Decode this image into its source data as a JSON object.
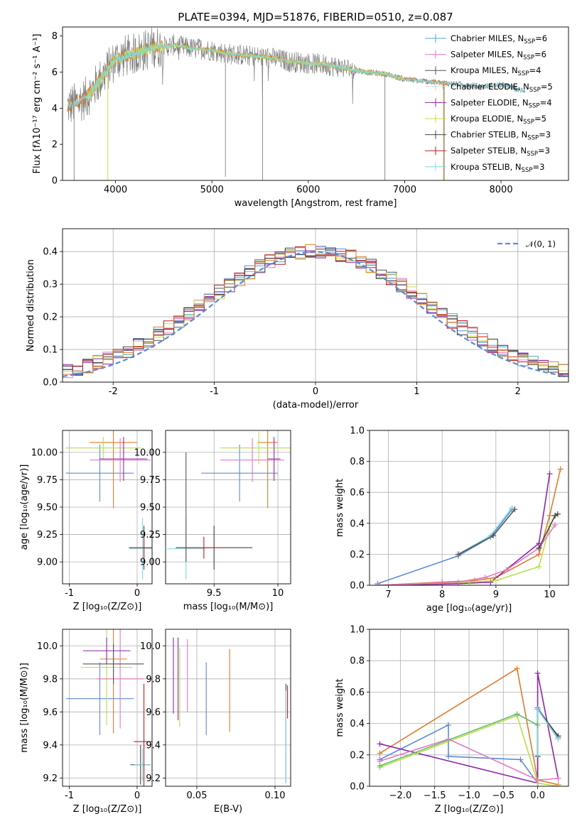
{
  "colors": {
    "chabrier_miles": "#4da6c8",
    "salpeter_miles": "#e377c2",
    "kroupa_miles": "#555555",
    "chabrier_elodie": "#d9d9d9",
    "salpeter_elodie": "#8e24aa",
    "kroupa_elodie": "#c8d84a",
    "chabrier_stelib": "#444444",
    "salpeter_stelib": "#b22222",
    "kroupa_stelib": "#7fd8e0",
    "sum_a": "#5b8bd6",
    "sum_b": "#e07b2a",
    "sum_c": "#b7e04a",
    "gauss": "#5b8bd6",
    "spec_gray": "#808080"
  },
  "chart_data": [
    {
      "id": "spectrum",
      "type": "line",
      "title": "PLATE=0394, MJD=51876, FIBERID=0510, z=0.087",
      "xlabel": "wavelength [Angstrom, rest frame]",
      "ylabel": "Flux [fλ10⁻¹⁷ erg cm⁻² s⁻¹ A⁻¹]",
      "xlim": [
        3450,
        8700
      ],
      "ylim": [
        0,
        8.5
      ],
      "xticks": [
        4000,
        5000,
        6000,
        7000,
        8000
      ],
      "yticks": [
        0,
        2,
        4,
        6,
        8
      ],
      "grid": false,
      "legend_placement": "right",
      "continuum": {
        "x": [
          3500,
          3600,
          3700,
          3800,
          3900,
          4000,
          4100,
          4200,
          4300,
          4400,
          4500,
          4600,
          4700,
          4800,
          4900,
          5000,
          5200,
          5400,
          5600,
          5800,
          6000,
          6200,
          6400,
          6600,
          6800,
          7000,
          7200,
          7400,
          7600,
          7800,
          8000,
          8200
        ],
        "y": [
          4.1,
          4.3,
          4.6,
          5.3,
          6.0,
          6.7,
          6.9,
          7.0,
          7.2,
          7.4,
          7.4,
          7.5,
          7.4,
          7.3,
          7.3,
          7.2,
          7.0,
          6.9,
          6.8,
          6.6,
          6.5,
          6.4,
          6.2,
          6.0,
          5.9,
          5.6,
          5.5,
          5.4,
          5.3,
          5.2,
          5.3,
          5.0
        ]
      },
      "legend": [
        {
          "label": "Chabrier MILES, N",
          "sub": "SSP",
          "value": "=6"
        },
        {
          "label": "Salpeter MILES, N",
          "sub": "SSP",
          "value": "=6"
        },
        {
          "label": "Kroupa MILES, N",
          "sub": "SSP",
          "value": "=4"
        },
        {
          "label": "Chabrier ELODIE, N",
          "sub": "SSP",
          "value": "=5"
        },
        {
          "label": "Salpeter ELODIE, N",
          "sub": "SSP",
          "value": "=4"
        },
        {
          "label": "Kroupa ELODIE, N",
          "sub": "SSP",
          "value": "=5"
        },
        {
          "label": "Chabrier STELIB, N",
          "sub": "SSP",
          "value": "=3"
        },
        {
          "label": "Salpeter STELIB, N",
          "sub": "SSP",
          "value": "=3"
        },
        {
          "label": "Kroupa STELIB, N",
          "sub": "SSP",
          "value": "=3"
        }
      ]
    },
    {
      "id": "residuals",
      "type": "line",
      "xlabel": "(data-model)/error",
      "ylabel": "Normed distribution",
      "xlim": [
        -2.5,
        2.5
      ],
      "ylim": [
        0,
        0.47
      ],
      "xticks": [
        -2,
        -1,
        0,
        1,
        2
      ],
      "yticks": [
        0.0,
        0.1,
        0.2,
        0.3,
        0.4
      ],
      "grid": true,
      "legend_placement": "top-right",
      "legend_label": "𝒩(0, 1)",
      "bin_width": 0.1
    },
    {
      "id": "age_vs_Z",
      "type": "scatter",
      "xlabel": "Z [log₁₀(Z/Z⊙)]",
      "ylabel": "age  [log₁₀(age/yr)]",
      "xlim": [
        -1.1,
        0.22
      ],
      "ylim": [
        8.8,
        10.2
      ],
      "xticks": [
        -1,
        0
      ],
      "yticks": [
        9.0,
        9.25,
        9.5,
        9.75,
        10.0
      ],
      "ytick_labels": [
        "9.00",
        "9.25",
        "9.50",
        "9.75",
        "10.00"
      ],
      "grid": true,
      "crosses": [
        {
          "c": "#5b8bd6",
          "x": -0.55,
          "xerr": 0.5,
          "y": 9.81,
          "yerr": 0.26
        },
        {
          "c": "#e07b2a",
          "x": -0.35,
          "xerr": 0.35,
          "y": 10.09,
          "yerr": 0.6
        },
        {
          "c": "#b7e04a",
          "x": -0.5,
          "xerr": 0.55,
          "y": 10.04,
          "yerr": 0.1
        },
        {
          "c": "#e377c2",
          "x": -0.25,
          "xerr": 0.45,
          "y": 9.93,
          "yerr": 0.2
        },
        {
          "c": "#8e24aa",
          "x": -0.2,
          "xerr": 0.35,
          "y": 9.94,
          "yerr": 0.2
        },
        {
          "c": "#444444",
          "x": 0.1,
          "xerr": 0.22,
          "y": 9.13,
          "yerr": 0.2
        },
        {
          "c": "#7fd8e0",
          "x": 0.08,
          "xerr": 0.2,
          "y": 9.12,
          "yerr": 0.28
        },
        {
          "c": "#b22222",
          "x": 0.1,
          "xerr": 0.2,
          "y": 9.13,
          "yerr": 0.1
        }
      ]
    },
    {
      "id": "age_vs_mass",
      "type": "scatter",
      "xlabel": "mass [log₁₀(M/M⊙)]",
      "ylabel": "",
      "xlim": [
        9.12,
        10.1
      ],
      "ylim": [
        8.8,
        10.2
      ],
      "xticks": [
        9.5,
        10.0
      ],
      "yticks": [
        9.0,
        9.25,
        9.5,
        9.75,
        10.0
      ],
      "ytick_labels": [
        "9.00",
        "9.25",
        "9.50",
        "9.75",
        "10.00"
      ],
      "grid": true,
      "crosses": [
        {
          "c": "#5b8bd6",
          "x": 9.7,
          "xerr": 0.3,
          "y": 9.81,
          "yerr": 0.26
        },
        {
          "c": "#e07b2a",
          "x": 9.92,
          "xerr": 0.08,
          "y": 10.09,
          "yerr": 0.6
        },
        {
          "c": "#b7e04a",
          "x": 9.85,
          "xerr": 0.3,
          "y": 10.04,
          "yerr": 0.15
        },
        {
          "c": "#e377c2",
          "x": 9.8,
          "xerr": 0.25,
          "y": 9.93,
          "yerr": 0.2
        },
        {
          "c": "#8e24aa",
          "x": 9.97,
          "xerr": 0.05,
          "y": 9.94,
          "yerr": 0.2
        },
        {
          "c": "#444444",
          "x": 9.5,
          "xerr": 0.3,
          "y": 9.13,
          "yerr": 0.2
        },
        {
          "c": "#7fd8e0",
          "x": 9.28,
          "xerr": 0.15,
          "y": 9.12,
          "yerr": 0.28
        },
        {
          "c": "#b22222",
          "x": 9.42,
          "xerr": 0.15,
          "y": 9.13,
          "yerr": 0.1
        },
        {
          "c": "#555555",
          "x": 9.28,
          "xerr": 0.0,
          "y": 9.5,
          "yerr": 0.5
        }
      ]
    },
    {
      "id": "massweight_vs_age",
      "type": "line",
      "xlabel": "age  [log₁₀(age/yr)]",
      "ylabel": "mass weight",
      "xlim": [
        6.65,
        10.35
      ],
      "ylim": [
        0,
        1.0
      ],
      "xticks": [
        7,
        8,
        9,
        10
      ],
      "yticks": [
        0.0,
        0.2,
        0.4,
        0.6,
        0.8,
        1.0
      ],
      "grid": true,
      "series": [
        {
          "c": "#5b8bd6",
          "x": [
            6.8,
            8.3,
            8.9,
            9.3
          ],
          "y": [
            0.01,
            0.19,
            0.31,
            0.49
          ]
        },
        {
          "c": "#7fd8e0",
          "x": [
            8.3,
            8.9,
            9.3
          ],
          "y": [
            0.2,
            0.32,
            0.5
          ]
        },
        {
          "c": "#555555",
          "x": [
            8.3,
            8.95,
            9.35
          ],
          "y": [
            0.2,
            0.32,
            0.49
          ]
        },
        {
          "c": "#e07b2a",
          "x": [
            6.8,
            8.0,
            8.6,
            9.0,
            9.8,
            10.0,
            10.2
          ],
          "y": [
            0.0,
            0.02,
            0.03,
            0.05,
            0.2,
            0.45,
            0.75
          ]
        },
        {
          "c": "#8e24aa",
          "x": [
            6.8,
            8.3,
            8.9,
            9.8,
            10.0
          ],
          "y": [
            0.0,
            0.01,
            0.02,
            0.27,
            0.72
          ]
        },
        {
          "c": "#b7e04a",
          "x": [
            6.8,
            8.5,
            9.0,
            9.8,
            10.0,
            10.1
          ],
          "y": [
            0.0,
            0.02,
            0.03,
            0.12,
            0.38,
            0.45
          ]
        },
        {
          "c": "#e377c2",
          "x": [
            6.8,
            8.3,
            8.8,
            9.2,
            9.8,
            10.1
          ],
          "y": [
            0.0,
            0.02,
            0.05,
            0.1,
            0.24,
            0.39
          ]
        },
        {
          "c": "#444444",
          "x": [
            9.8,
            10.1,
            10.15
          ],
          "y": [
            0.24,
            0.45,
            0.46
          ]
        }
      ]
    },
    {
      "id": "mass_vs_Z",
      "type": "scatter",
      "xlabel": "Z [log₁₀(Z/Z⊙)]",
      "ylabel": "mass [log₁₀(M/M⊙)]",
      "xlim": [
        -1.1,
        0.22
      ],
      "ylim": [
        9.15,
        10.1
      ],
      "xticks": [
        -1,
        0
      ],
      "yticks": [
        9.2,
        9.4,
        9.6,
        9.8,
        10.0
      ],
      "ytick_labels": [
        "9.2",
        "9.4",
        "9.6",
        "9.8",
        "10.0"
      ],
      "grid": true,
      "crosses": [
        {
          "c": "#5b8bd6",
          "x": -0.55,
          "xerr": 0.5,
          "y": 9.68,
          "yerr": 0.22
        },
        {
          "c": "#e07b2a",
          "x": -0.35,
          "xerr": 0.2,
          "y": 9.92,
          "yerr": 0.45
        },
        {
          "c": "#b7e04a",
          "x": -0.45,
          "xerr": 0.38,
          "y": 9.87,
          "yerr": 0.35
        },
        {
          "c": "#e377c2",
          "x": -0.25,
          "xerr": 0.35,
          "y": 9.8,
          "yerr": 0.3
        },
        {
          "c": "#8e24aa",
          "x": -0.45,
          "xerr": 0.35,
          "y": 9.97,
          "yerr": 0.08
        },
        {
          "c": "#444444",
          "x": 0.05,
          "xerr": 0.15,
          "y": 9.28,
          "yerr": 0.12
        },
        {
          "c": "#7fd8e0",
          "x": 0.08,
          "xerr": 0.12,
          "y": 9.28,
          "yerr": 0.1
        },
        {
          "c": "#b22222",
          "x": 0.1,
          "xerr": 0.15,
          "y": 9.42,
          "yerr": 0.35
        },
        {
          "c": "#555555",
          "x": -0.35,
          "xerr": 0.45,
          "y": 9.89,
          "yerr": 0.12
        }
      ]
    },
    {
      "id": "mass_vs_ebv",
      "type": "scatter",
      "xlabel": "E(B-V)",
      "ylabel": "",
      "xlim": [
        0.03,
        0.11
      ],
      "ylim": [
        9.15,
        10.1
      ],
      "xticks": [
        0.05,
        0.1
      ],
      "xtick_labels": [
        "0.05",
        "0.10"
      ],
      "yticks": [
        9.2,
        9.4,
        9.6,
        9.8,
        10.0
      ],
      "ytick_labels": [
        "9.2",
        "9.4",
        "9.6",
        "9.8",
        "10.0"
      ],
      "grid": true,
      "crosses": [
        {
          "c": "#5b8bd6",
          "x": 0.056,
          "xerr": 0.0,
          "y": 9.68,
          "yerr": 0.22
        },
        {
          "c": "#e07b2a",
          "x": 0.071,
          "xerr": 0.0,
          "y": 9.73,
          "yerr": 0.25
        },
        {
          "c": "#b7e04a",
          "x": 0.039,
          "xerr": 0.0,
          "y": 9.75,
          "yerr": 0.24
        },
        {
          "c": "#e377c2",
          "x": 0.044,
          "xerr": 0.0,
          "y": 9.82,
          "yerr": 0.22
        },
        {
          "c": "#8e24aa",
          "x": 0.035,
          "xerr": 0.0,
          "y": 9.82,
          "yerr": 0.23
        },
        {
          "c": "#8e24aa",
          "x": 0.038,
          "xerr": 0.0,
          "y": 9.8,
          "yerr": 0.25
        },
        {
          "c": "#444444",
          "x": 0.107,
          "xerr": 0.0,
          "y": 9.47,
          "yerr": 0.3
        },
        {
          "c": "#7fd8e0",
          "x": 0.107,
          "xerr": 0.0,
          "y": 9.45,
          "yerr": 0.28
        },
        {
          "c": "#b22222",
          "x": 0.108,
          "xerr": 0.0,
          "y": 9.66,
          "yerr": 0.1
        }
      ]
    },
    {
      "id": "massweight_vs_Z",
      "type": "line",
      "xlabel": "Z [log₁₀(Z/Z⊙)]",
      "ylabel": "mass weight",
      "xlim": [
        -2.45,
        0.45
      ],
      "ylim": [
        0,
        1.0
      ],
      "xticks": [
        -2.0,
        -1.5,
        -1.0,
        -0.5,
        0.0
      ],
      "xtick_labels": [
        "−2.0",
        "−1.5",
        "−1.0",
        "−0.5",
        "0.0"
      ],
      "yticks": [
        0.0,
        0.2,
        0.4,
        0.6,
        0.8,
        1.0
      ],
      "grid": true,
      "series": [
        {
          "c": "#5b8bd6",
          "x": [
            -2.3,
            -1.3,
            -1.3,
            -0.25,
            0.0,
            0.0,
            0.3
          ],
          "y": [
            0.17,
            0.39,
            0.19,
            0.17,
            0.02,
            0.5,
            0.31
          ]
        },
        {
          "c": "#e07b2a",
          "x": [
            -2.3,
            -0.3,
            0.0,
            0.3
          ],
          "y": [
            0.21,
            0.75,
            0.04,
            0.01
          ]
        },
        {
          "c": "#8e24aa",
          "x": [
            -2.3,
            0.0,
            0.0,
            0.3
          ],
          "y": [
            0.27,
            0.02,
            0.72,
            0.05
          ]
        },
        {
          "c": "#b7e04a",
          "x": [
            -2.3,
            -0.3,
            0.0,
            0.3
          ],
          "y": [
            0.12,
            0.45,
            0.02,
            0.0
          ]
        },
        {
          "c": "#e377c2",
          "x": [
            -2.3,
            -1.3,
            0.0,
            0.3
          ],
          "y": [
            0.16,
            0.3,
            0.04,
            0.05
          ]
        },
        {
          "c": "#444444",
          "x": [
            0.0,
            0.0,
            0.3
          ],
          "y": [
            0.19,
            0.49,
            0.32
          ]
        },
        {
          "c": "#7fd8e0",
          "x": [
            0.0,
            0.0,
            0.3
          ],
          "y": [
            0.2,
            0.49,
            0.3
          ]
        },
        {
          "c": "#66bb6a",
          "x": [
            -2.3,
            -0.3,
            0.0
          ],
          "y": [
            0.13,
            0.46,
            0.39
          ]
        }
      ]
    }
  ]
}
